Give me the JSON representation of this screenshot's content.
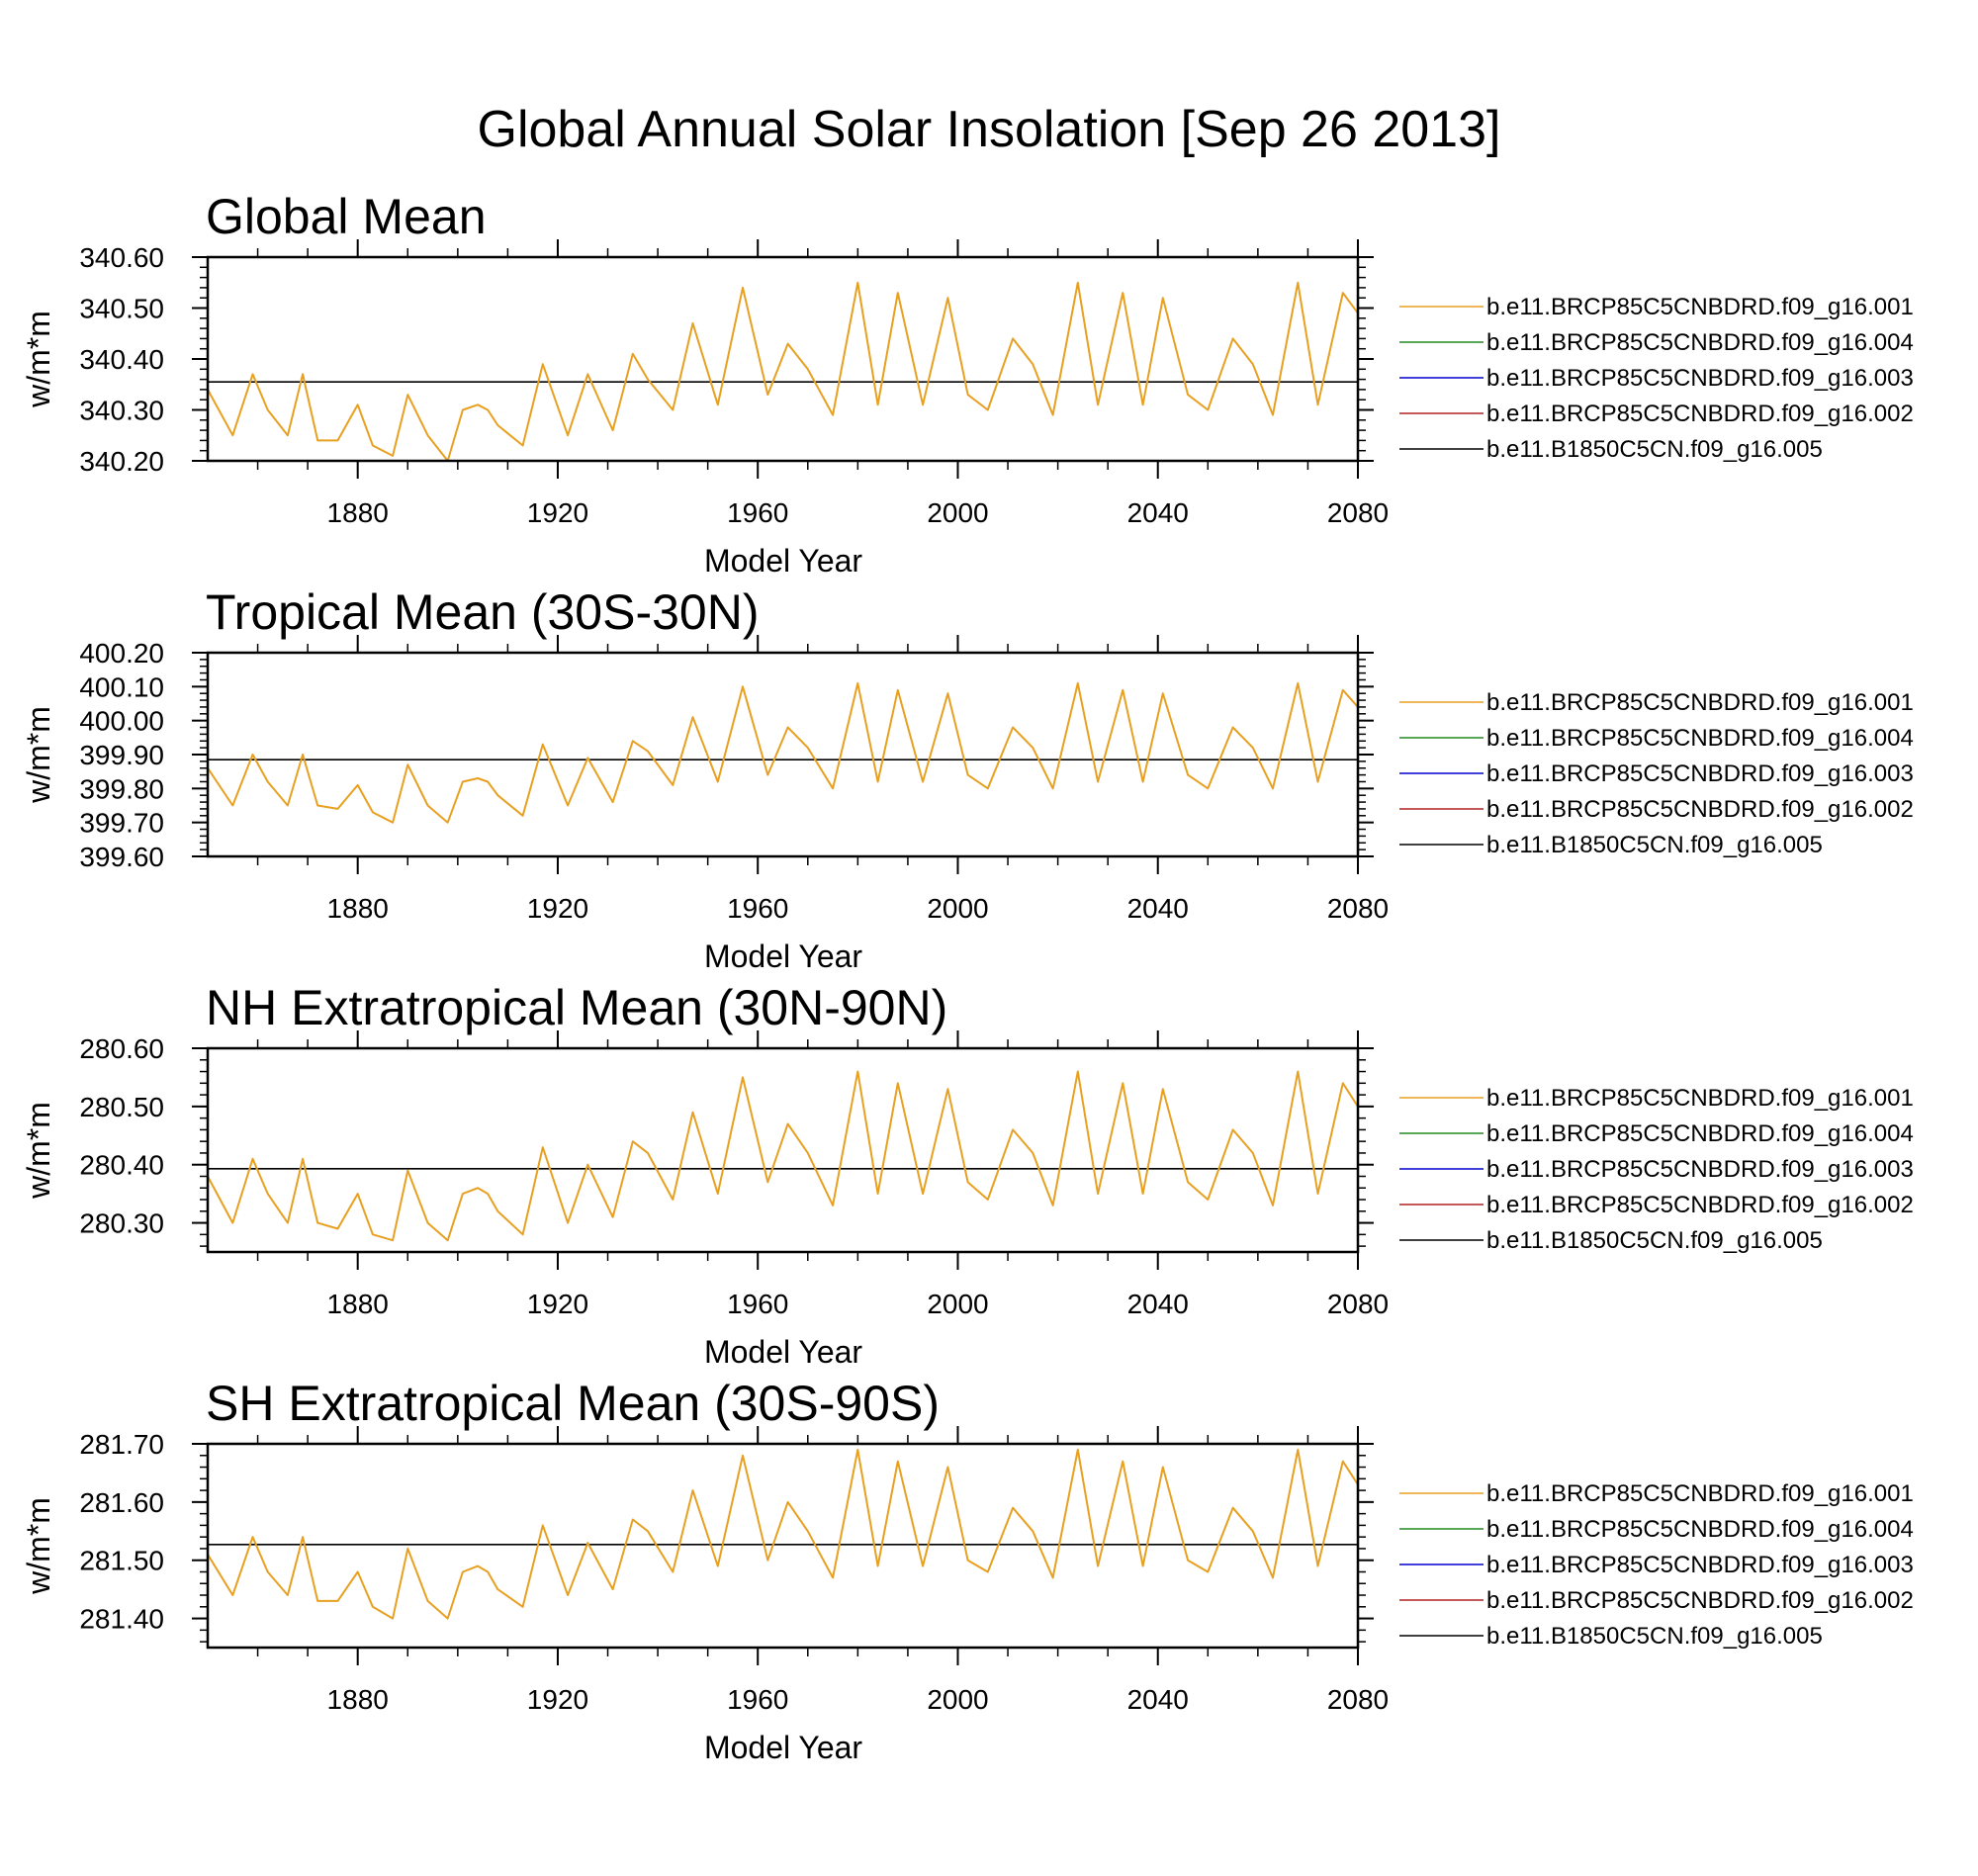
{
  "title": "Global Annual Solar Insolation [Sep 26 2013]",
  "legend_entries": [
    {
      "name": "b.e11.BRCP85C5CNBDRD.f09_g16.001",
      "color": "#e8a020"
    },
    {
      "name": "b.e11.BRCP85C5CNBDRD.f09_g16.004",
      "color": "#228b22"
    },
    {
      "name": "b.e11.BRCP85C5CNBDRD.f09_g16.003",
      "color": "#0000cd"
    },
    {
      "name": "b.e11.BRCP85C5CNBDRD.f09_g16.002",
      "color": "#b22222"
    },
    {
      "name": "b.e11.B1850C5CN.f09_g16.005",
      "color": "#000000"
    }
  ],
  "chart_data": [
    {
      "type": "line",
      "title": "Global Mean",
      "xlabel": "Model Year",
      "ylabel": "w/m*m",
      "xlim": [
        1850,
        2080
      ],
      "ylim": [
        340.2,
        340.6
      ],
      "xticks": [
        "1880",
        "1920",
        "1960",
        "2000",
        "2040",
        "2080"
      ],
      "yticks": [
        "340.20",
        "340.30",
        "340.40",
        "340.50",
        "340.60"
      ],
      "grid": false,
      "legend_position": "right",
      "reference_line": {
        "name": "b.e11.B1850C5CN.f09_g16.005",
        "value": 340.355
      },
      "series": [
        {
          "name": "b.e11.BRCP85C5CNBDRD.f09_g16.001",
          "x": [
            1850,
            1855,
            1859,
            1862,
            1866,
            1869,
            1872,
            1876,
            1880,
            1883,
            1887,
            1890,
            1894,
            1898,
            1901,
            1904,
            1906,
            1908,
            1913,
            1917,
            1922,
            1926,
            1931,
            1935,
            1938,
            1943,
            1947,
            1952,
            1957,
            1962,
            1966,
            1970,
            1975,
            1980,
            1984,
            1988,
            1993,
            1998,
            2002,
            2006,
            2011,
            2015,
            2019,
            2024,
            2028,
            2033,
            2037,
            2041,
            2046,
            2050,
            2055,
            2059,
            2063,
            2068,
            2072,
            2077,
            2080
          ],
          "y": [
            340.34,
            340.25,
            340.37,
            340.3,
            340.25,
            340.37,
            340.24,
            340.24,
            340.31,
            340.23,
            340.21,
            340.33,
            340.25,
            340.2,
            340.3,
            340.31,
            340.3,
            340.27,
            340.23,
            340.39,
            340.25,
            340.37,
            340.26,
            340.41,
            340.36,
            340.3,
            340.47,
            340.31,
            340.54,
            340.33,
            340.43,
            340.38,
            340.29,
            340.55,
            340.31,
            340.53,
            340.31,
            340.52,
            340.33,
            340.3,
            340.44,
            340.39,
            340.29,
            340.55,
            340.31,
            340.53,
            340.31,
            340.52,
            340.33,
            340.3,
            340.44,
            340.39,
            340.29,
            340.55,
            340.31,
            340.53,
            340.49
          ]
        }
      ]
    },
    {
      "type": "line",
      "title": "Tropical Mean (30S-30N)",
      "xlabel": "Model Year",
      "ylabel": "w/m*m",
      "xlim": [
        1850,
        2080
      ],
      "ylim": [
        399.6,
        400.2
      ],
      "xticks": [
        "1880",
        "1920",
        "1960",
        "2000",
        "2040",
        "2080"
      ],
      "yticks": [
        "399.60",
        "399.70",
        "399.80",
        "399.90",
        "400.00",
        "400.10",
        "400.20"
      ],
      "grid": false,
      "legend_position": "right",
      "reference_line": {
        "name": "b.e11.B1850C5CN.f09_g16.005",
        "value": 399.885
      },
      "series": [
        {
          "name": "b.e11.BRCP85C5CNBDRD.f09_g16.001",
          "x": [
            1850,
            1855,
            1859,
            1862,
            1866,
            1869,
            1872,
            1876,
            1880,
            1883,
            1887,
            1890,
            1894,
            1898,
            1901,
            1904,
            1906,
            1908,
            1913,
            1917,
            1922,
            1926,
            1931,
            1935,
            1938,
            1943,
            1947,
            1952,
            1957,
            1962,
            1966,
            1970,
            1975,
            1980,
            1984,
            1988,
            1993,
            1998,
            2002,
            2006,
            2011,
            2015,
            2019,
            2024,
            2028,
            2033,
            2037,
            2041,
            2046,
            2050,
            2055,
            2059,
            2063,
            2068,
            2072,
            2077,
            2080
          ],
          "y": [
            399.86,
            399.75,
            399.9,
            399.82,
            399.75,
            399.9,
            399.75,
            399.74,
            399.81,
            399.73,
            399.7,
            399.87,
            399.75,
            399.7,
            399.82,
            399.83,
            399.82,
            399.78,
            399.72,
            399.93,
            399.75,
            399.89,
            399.76,
            399.94,
            399.91,
            399.81,
            400.01,
            399.82,
            400.1,
            399.84,
            399.98,
            399.92,
            399.8,
            400.11,
            399.82,
            400.09,
            399.82,
            400.08,
            399.84,
            399.8,
            399.98,
            399.92,
            399.8,
            400.11,
            399.82,
            400.09,
            399.82,
            400.08,
            399.84,
            399.8,
            399.98,
            399.92,
            399.8,
            400.11,
            399.82,
            400.09,
            400.04
          ]
        }
      ]
    },
    {
      "type": "line",
      "title": "NH Extratropical Mean (30N-90N)",
      "xlabel": "Model Year",
      "ylabel": "w/m*m",
      "xlim": [
        1850,
        2080
      ],
      "ylim": [
        280.25,
        280.6
      ],
      "xticks": [
        "1880",
        "1920",
        "1960",
        "2000",
        "2040",
        "2080"
      ],
      "yticks": [
        "280.30",
        "280.40",
        "280.50",
        "280.60"
      ],
      "grid": false,
      "legend_position": "right",
      "reference_line": {
        "name": "b.e11.B1850C5CN.f09_g16.005",
        "value": 280.393
      },
      "series": [
        {
          "name": "b.e11.BRCP85C5CNBDRD.f09_g16.001",
          "x": [
            1850,
            1855,
            1859,
            1862,
            1866,
            1869,
            1872,
            1876,
            1880,
            1883,
            1887,
            1890,
            1894,
            1898,
            1901,
            1904,
            1906,
            1908,
            1913,
            1917,
            1922,
            1926,
            1931,
            1935,
            1938,
            1943,
            1947,
            1952,
            1957,
            1962,
            1966,
            1970,
            1975,
            1980,
            1984,
            1988,
            1993,
            1998,
            2002,
            2006,
            2011,
            2015,
            2019,
            2024,
            2028,
            2033,
            2037,
            2041,
            2046,
            2050,
            2055,
            2059,
            2063,
            2068,
            2072,
            2077,
            2080
          ],
          "y": [
            280.38,
            280.3,
            280.41,
            280.35,
            280.3,
            280.41,
            280.3,
            280.29,
            280.35,
            280.28,
            280.27,
            280.39,
            280.3,
            280.27,
            280.35,
            280.36,
            280.35,
            280.32,
            280.28,
            280.43,
            280.3,
            280.4,
            280.31,
            280.44,
            280.42,
            280.34,
            280.49,
            280.35,
            280.55,
            280.37,
            280.47,
            280.42,
            280.33,
            280.56,
            280.35,
            280.54,
            280.35,
            280.53,
            280.37,
            280.34,
            280.46,
            280.42,
            280.33,
            280.56,
            280.35,
            280.54,
            280.35,
            280.53,
            280.37,
            280.34,
            280.46,
            280.42,
            280.33,
            280.56,
            280.35,
            280.54,
            280.5
          ]
        }
      ]
    },
    {
      "type": "line",
      "title": "SH Extratropical Mean (30S-90S)",
      "xlabel": "Model Year",
      "ylabel": "w/m*m",
      "xlim": [
        1850,
        2080
      ],
      "ylim": [
        281.35,
        281.7
      ],
      "xticks": [
        "1880",
        "1920",
        "1960",
        "2000",
        "2040",
        "2080"
      ],
      "yticks": [
        "281.40",
        "281.50",
        "281.60",
        "281.70"
      ],
      "grid": false,
      "legend_position": "right",
      "reference_line": {
        "name": "b.e11.B1850C5CN.f09_g16.005",
        "value": 281.527
      },
      "series": [
        {
          "name": "b.e11.BRCP85C5CNBDRD.f09_g16.001",
          "x": [
            1850,
            1855,
            1859,
            1862,
            1866,
            1869,
            1872,
            1876,
            1880,
            1883,
            1887,
            1890,
            1894,
            1898,
            1901,
            1904,
            1906,
            1908,
            1913,
            1917,
            1922,
            1926,
            1931,
            1935,
            1938,
            1943,
            1947,
            1952,
            1957,
            1962,
            1966,
            1970,
            1975,
            1980,
            1984,
            1988,
            1993,
            1998,
            2002,
            2006,
            2011,
            2015,
            2019,
            2024,
            2028,
            2033,
            2037,
            2041,
            2046,
            2050,
            2055,
            2059,
            2063,
            2068,
            2072,
            2077,
            2080
          ],
          "y": [
            281.51,
            281.44,
            281.54,
            281.48,
            281.44,
            281.54,
            281.43,
            281.43,
            281.48,
            281.42,
            281.4,
            281.52,
            281.43,
            281.4,
            281.48,
            281.49,
            281.48,
            281.45,
            281.42,
            281.56,
            281.44,
            281.53,
            281.45,
            281.57,
            281.55,
            281.48,
            281.62,
            281.49,
            281.68,
            281.5,
            281.6,
            281.55,
            281.47,
            281.69,
            281.49,
            281.67,
            281.49,
            281.66,
            281.5,
            281.48,
            281.59,
            281.55,
            281.47,
            281.69,
            281.49,
            281.67,
            281.49,
            281.66,
            281.5,
            281.48,
            281.59,
            281.55,
            281.47,
            281.69,
            281.49,
            281.67,
            281.63
          ]
        }
      ]
    }
  ]
}
